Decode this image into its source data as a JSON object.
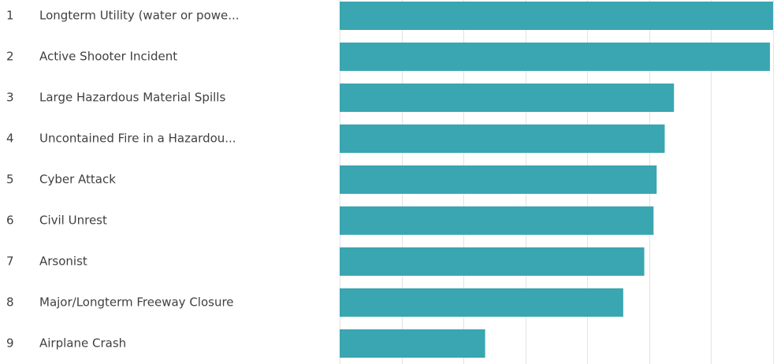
{
  "chart_data": {
    "type": "bar",
    "orientation": "horizontal",
    "title": "",
    "xlabel": "",
    "ylabel": "",
    "grid": true,
    "bar_color": "#3aa6b1",
    "xlim": [
      0,
      7
    ],
    "ranks": [
      "1",
      "2",
      "3",
      "4",
      "5",
      "6",
      "7",
      "8",
      "9"
    ],
    "categories": [
      "Longterm Utility (water or powe...",
      "Active Shooter Incident",
      "Large Hazardous Material Spills",
      "Uncontained Fire in a Hazardou...",
      "Cyber Attack",
      "Civil Unrest",
      "Arsonist",
      "Major/Longterm Freeway Closure",
      "Airplane Crash"
    ],
    "values": [
      7.0,
      6.95,
      5.4,
      5.25,
      5.12,
      5.07,
      4.92,
      4.58,
      2.35
    ]
  }
}
